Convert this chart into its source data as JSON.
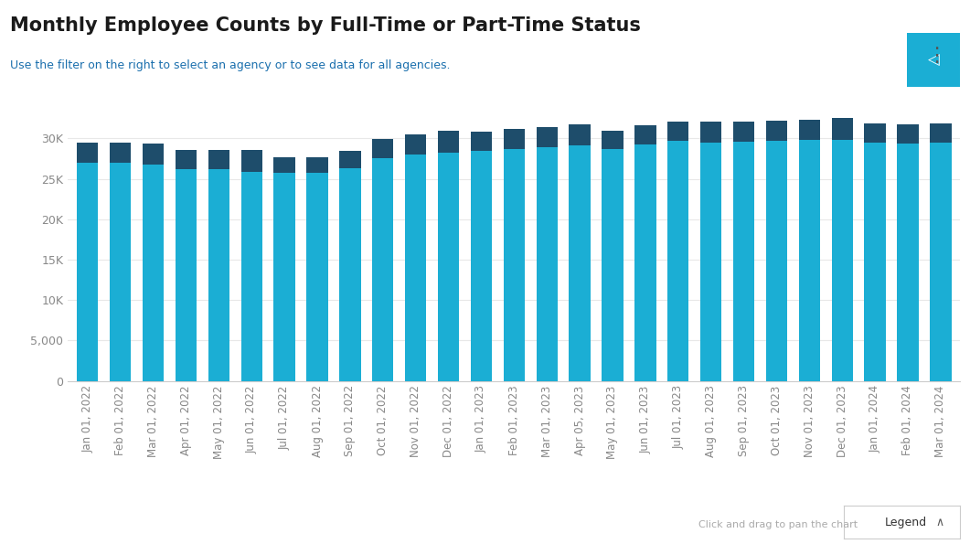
{
  "title": "Monthly Employee Counts by Full-Time or Part-Time Status",
  "subtitle": "Use the filter on the right to select an agency or to see data for all agencies.",
  "title_color": "#1a1a1a",
  "subtitle_color": "#1a6fad",
  "background_color": "#ffffff",
  "bar_color_ft": "#1baed4",
  "bar_color_pt": "#1e4d6b",
  "categories": [
    "Jan 01, 2022",
    "Feb 01, 2022",
    "Mar 01, 2022",
    "Apr 01, 2022",
    "May 01, 2022",
    "Jun 01, 2022",
    "Jul 01, 2022",
    "Aug 01, 2022",
    "Sep 01, 2022",
    "Oct 01, 2022",
    "Nov 01, 2022",
    "Dec 01, 2022",
    "Jan 01, 2023",
    "Feb 01, 2023",
    "Mar 01, 2023",
    "Apr 05, 2023",
    "May 01, 2023",
    "Jun 01, 2023",
    "Jul 01, 2023",
    "Aug 01, 2023",
    "Sep 01, 2023",
    "Oct 01, 2023",
    "Nov 01, 2023",
    "Dec 01, 2023",
    "Jan 01, 2024",
    "Feb 01, 2024",
    "Mar 01, 2024"
  ],
  "ft_values": [
    27000,
    27000,
    26700,
    26200,
    26200,
    25900,
    25700,
    25700,
    26300,
    27500,
    28000,
    28200,
    28500,
    28700,
    28900,
    29100,
    28700,
    29200,
    29700,
    29500,
    29600,
    29700,
    29800,
    29800,
    29500,
    29400,
    29500
  ],
  "pt_values": [
    2500,
    2500,
    2700,
    2400,
    2400,
    2700,
    2000,
    2000,
    2200,
    2400,
    2500,
    2700,
    2300,
    2500,
    2500,
    2600,
    2200,
    2400,
    2400,
    2600,
    2500,
    2500,
    2500,
    2700,
    2400,
    2300,
    2400
  ],
  "ylim": [
    0,
    35000
  ],
  "yticks": [
    0,
    5000,
    10000,
    15000,
    20000,
    25000,
    30000
  ],
  "ytick_labels": [
    "0",
    "5,000",
    "10K",
    "15K",
    "20K",
    "25K",
    "30K"
  ],
  "axis_color": "#cccccc",
  "tick_color": "#888888",
  "grid_color": "#e8e8e8"
}
